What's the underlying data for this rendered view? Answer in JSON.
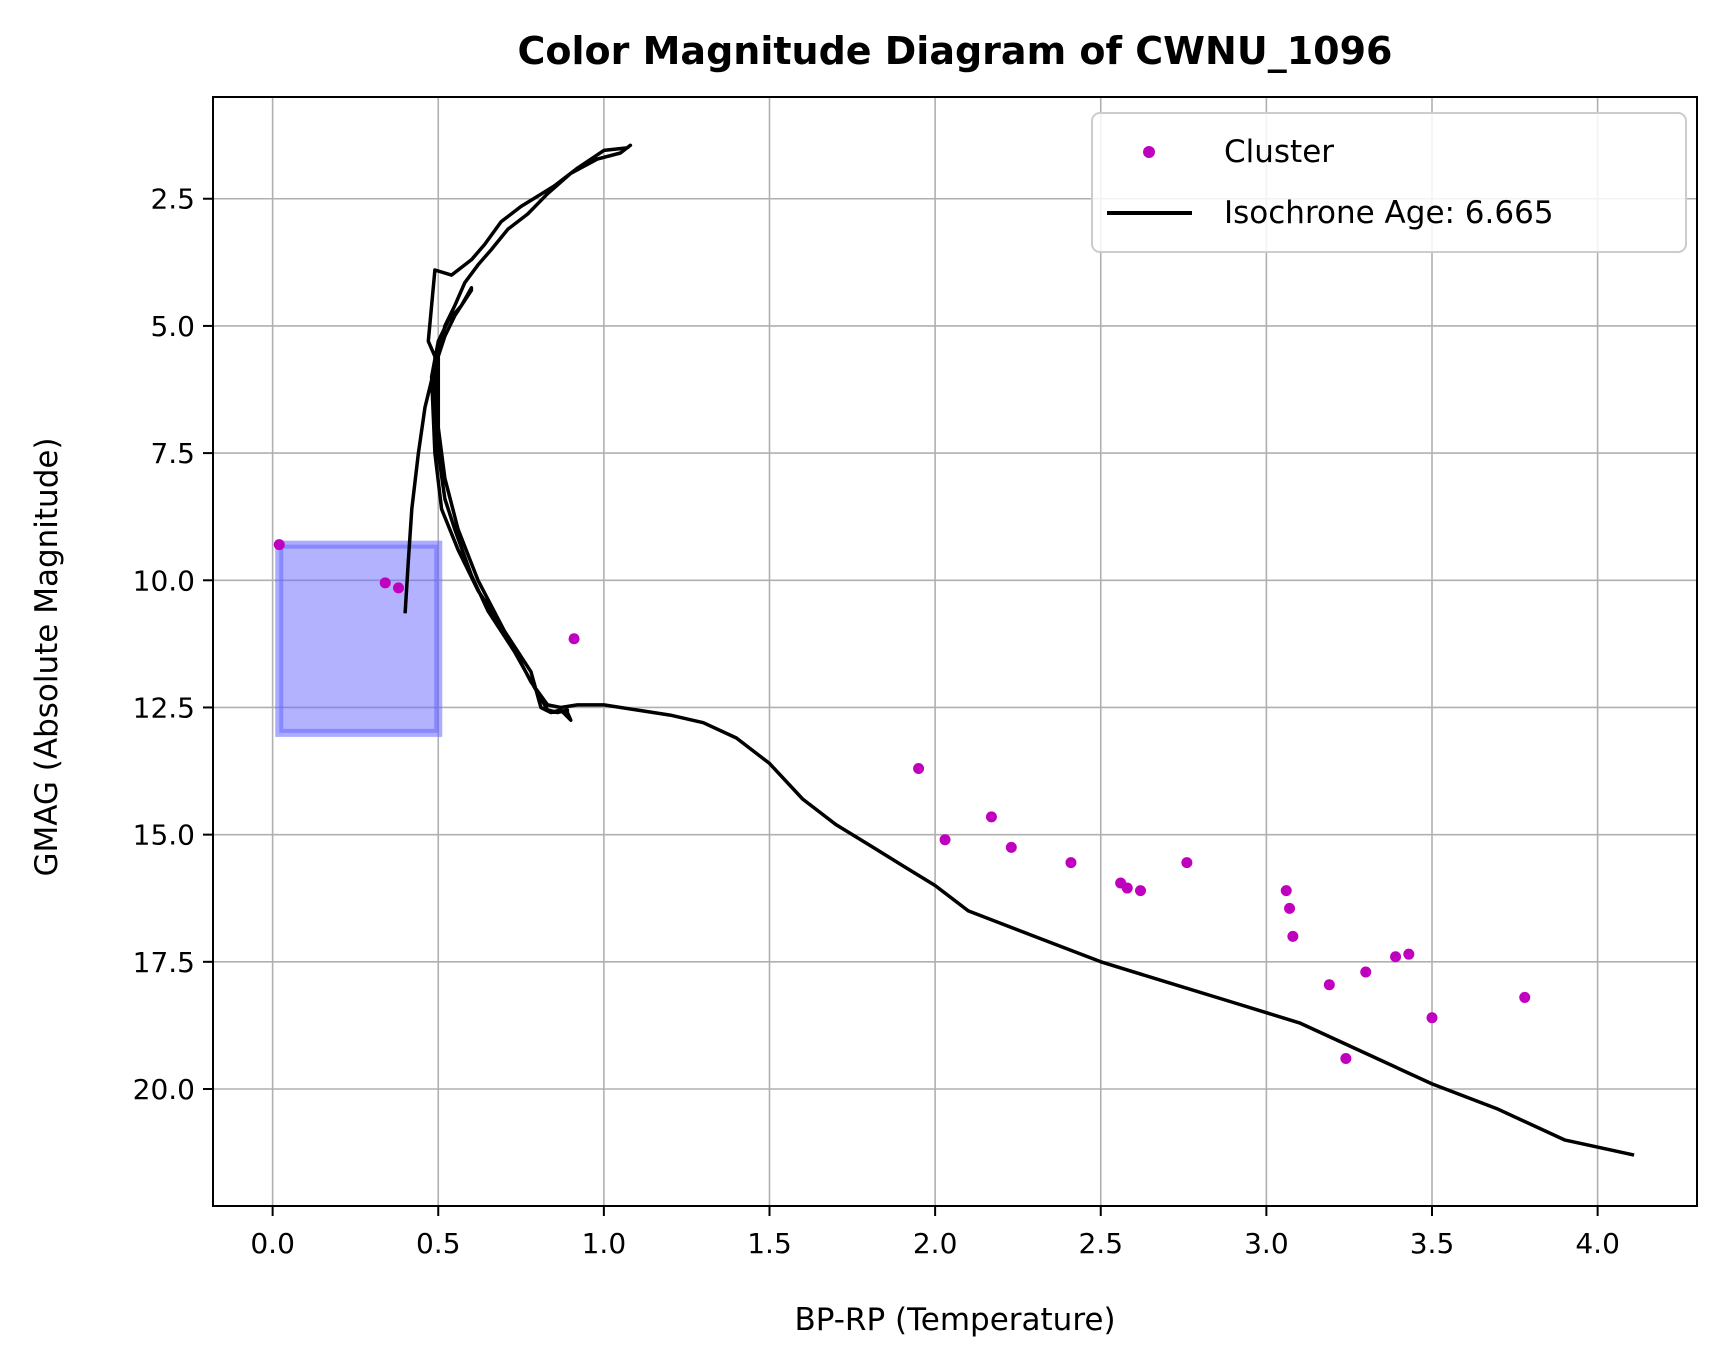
{
  "chart_data": {
    "type": "scatter",
    "title": "Color Magnitude Diagram of CWNU_1096",
    "xlabel": "BP-RP (Temperature)",
    "ylabel": "GMAG (Absolute Magnitude)",
    "xlim": [
      -0.18,
      4.3
    ],
    "ylim": [
      22.3,
      0.5
    ],
    "y_inverted": true,
    "grid": true,
    "legend_position": "top-right",
    "x_ticks": [
      0.0,
      0.5,
      1.0,
      1.5,
      2.0,
      2.5,
      3.0,
      3.5,
      4.0
    ],
    "x_tick_labels": [
      "0.0",
      "0.5",
      "1.0",
      "1.5",
      "2.0",
      "2.5",
      "3.0",
      "3.5",
      "4.0"
    ],
    "y_ticks": [
      2.5,
      5.0,
      7.5,
      10.0,
      12.5,
      15.0,
      17.5,
      20.0
    ],
    "y_tick_labels": [
      "2.5",
      "5.0",
      "7.5",
      "10.0",
      "12.5",
      "15.0",
      "17.5",
      "20.0"
    ],
    "series": [
      {
        "name": "Cluster",
        "kind": "scatter",
        "color": "#bf00bf",
        "points": [
          [
            0.02,
            9.3
          ],
          [
            0.34,
            10.05
          ],
          [
            0.38,
            10.15
          ],
          [
            0.91,
            11.15
          ],
          [
            1.95,
            13.7
          ],
          [
            2.03,
            15.1
          ],
          [
            2.17,
            14.65
          ],
          [
            2.23,
            15.25
          ],
          [
            2.41,
            15.55
          ],
          [
            2.56,
            15.95
          ],
          [
            2.58,
            16.05
          ],
          [
            2.62,
            16.1
          ],
          [
            2.76,
            15.55
          ],
          [
            3.06,
            16.1
          ],
          [
            3.07,
            16.45
          ],
          [
            3.08,
            17.0
          ],
          [
            3.19,
            17.95
          ],
          [
            3.24,
            19.4
          ],
          [
            3.3,
            17.7
          ],
          [
            3.39,
            17.4
          ],
          [
            3.43,
            17.35
          ],
          [
            3.5,
            18.6
          ],
          [
            3.78,
            18.2
          ]
        ]
      },
      {
        "name": "Isochrone Age: 6.665",
        "kind": "line",
        "color": "#000000",
        "points": [
          [
            0.4,
            10.65
          ],
          [
            0.41,
            9.6
          ],
          [
            0.42,
            8.6
          ],
          [
            0.44,
            7.5
          ],
          [
            0.46,
            6.6
          ],
          [
            0.49,
            5.8
          ],
          [
            0.52,
            5.2
          ],
          [
            0.55,
            4.8
          ],
          [
            0.6,
            4.3
          ],
          [
            0.6,
            4.25
          ],
          [
            0.57,
            4.6
          ],
          [
            0.53,
            4.9
          ],
          [
            0.5,
            5.3
          ],
          [
            0.48,
            6.0
          ],
          [
            0.49,
            7.5
          ],
          [
            0.51,
            8.6
          ],
          [
            0.56,
            9.4
          ],
          [
            0.62,
            10.2
          ],
          [
            0.68,
            10.8
          ],
          [
            0.78,
            11.8
          ],
          [
            0.81,
            12.5
          ],
          [
            0.84,
            12.6
          ],
          [
            0.87,
            12.55
          ],
          [
            0.9,
            12.75
          ],
          [
            0.89,
            12.6
          ],
          [
            0.89,
            12.55
          ],
          [
            0.86,
            12.6
          ],
          [
            0.83,
            12.55
          ],
          [
            0.79,
            12.1
          ],
          [
            0.73,
            11.4
          ],
          [
            0.65,
            10.6
          ],
          [
            0.6,
            9.9
          ],
          [
            0.55,
            9.0
          ],
          [
            0.52,
            8.4
          ],
          [
            0.5,
            7.5
          ],
          [
            0.49,
            6.5
          ],
          [
            0.49,
            5.9
          ],
          [
            0.49,
            5.6
          ],
          [
            0.47,
            5.3
          ],
          [
            0.48,
            4.6
          ],
          [
            0.49,
            3.9
          ],
          [
            0.54,
            4.0
          ],
          [
            0.6,
            3.7
          ],
          [
            0.64,
            3.4
          ],
          [
            0.69,
            2.95
          ],
          [
            0.75,
            2.65
          ],
          [
            0.8,
            2.45
          ],
          [
            0.85,
            2.25
          ],
          [
            0.92,
            1.9
          ],
          [
            1.0,
            1.55
          ],
          [
            1.07,
            1.5
          ],
          [
            1.08,
            1.45
          ],
          [
            1.05,
            1.6
          ],
          [
            0.98,
            1.72
          ],
          [
            0.9,
            2.0
          ],
          [
            0.83,
            2.4
          ],
          [
            0.77,
            2.8
          ],
          [
            0.71,
            3.1
          ],
          [
            0.66,
            3.5
          ],
          [
            0.62,
            3.8
          ],
          [
            0.58,
            4.15
          ],
          [
            0.55,
            4.6
          ],
          [
            0.52,
            5.0
          ],
          [
            0.5,
            5.6
          ],
          [
            0.5,
            6.0
          ],
          [
            0.5,
            7.0
          ],
          [
            0.52,
            8.0
          ],
          [
            0.56,
            9.0
          ],
          [
            0.62,
            10.0
          ],
          [
            0.7,
            11.0
          ],
          [
            0.78,
            12.0
          ],
          [
            0.83,
            12.45
          ],
          [
            0.87,
            12.5
          ],
          [
            0.92,
            12.45
          ],
          [
            1.0,
            12.45
          ],
          [
            1.1,
            12.55
          ],
          [
            1.2,
            12.65
          ],
          [
            1.3,
            12.8
          ],
          [
            1.4,
            13.1
          ],
          [
            1.5,
            13.6
          ],
          [
            1.6,
            14.3
          ],
          [
            1.7,
            14.8
          ],
          [
            1.8,
            15.2
          ],
          [
            1.9,
            15.6
          ],
          [
            2.0,
            16.0
          ],
          [
            2.1,
            16.5
          ],
          [
            2.3,
            17.0
          ],
          [
            2.5,
            17.5
          ],
          [
            2.7,
            17.9
          ],
          [
            2.9,
            18.3
          ],
          [
            3.1,
            18.7
          ],
          [
            3.3,
            19.3
          ],
          [
            3.5,
            19.9
          ],
          [
            3.7,
            20.4
          ],
          [
            3.9,
            21.0
          ],
          [
            4.11,
            21.3
          ]
        ]
      }
    ],
    "highlight_region": {
      "x_range": [
        0.02,
        0.5
      ],
      "y_range": [
        9.3,
        13.0
      ],
      "color": "#6666ff"
    }
  }
}
